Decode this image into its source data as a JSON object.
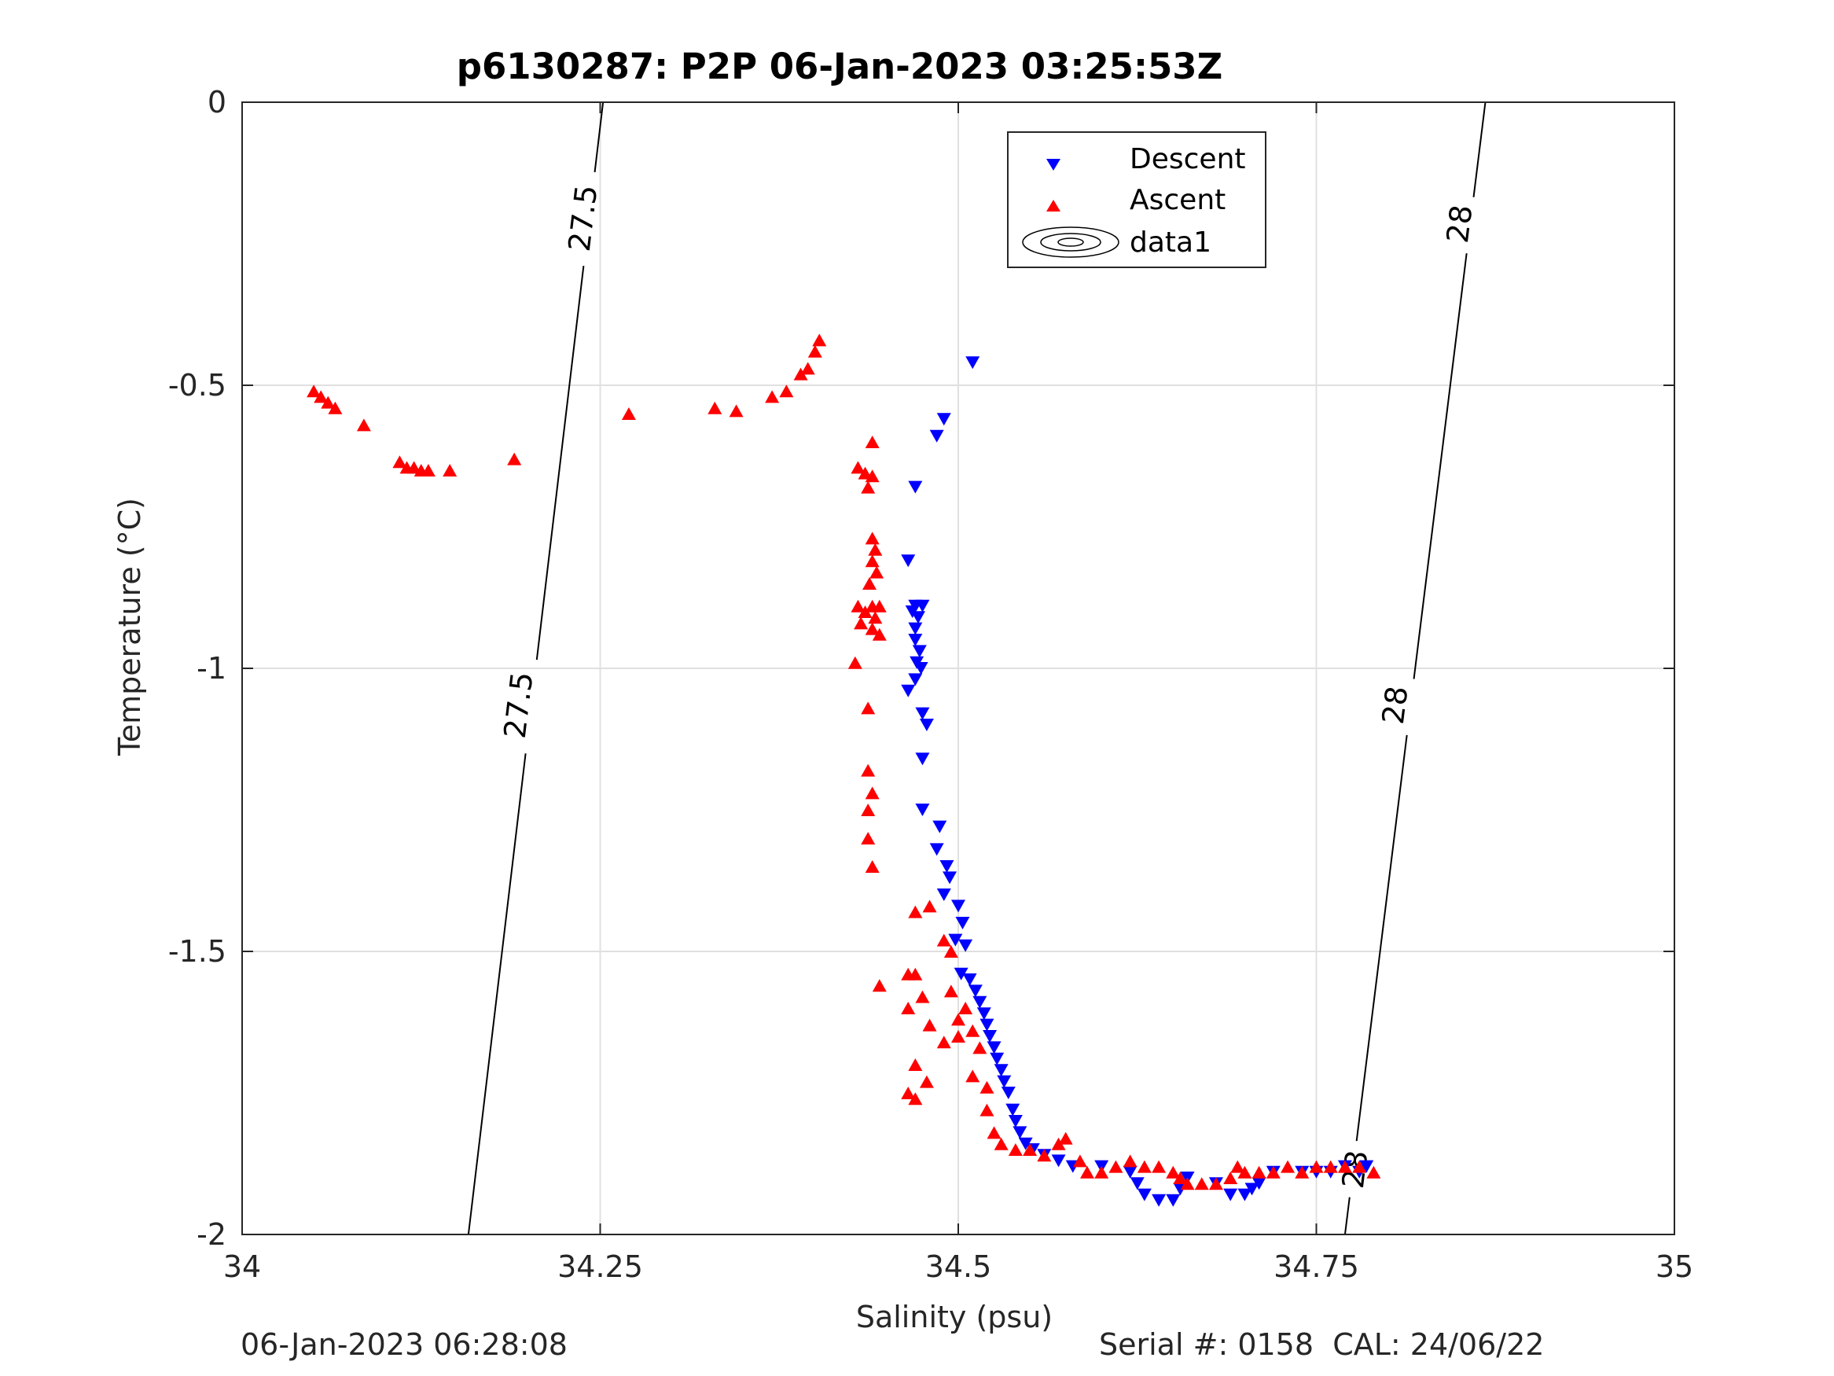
{
  "chart_data": {
    "type": "scatter",
    "title": "p6130287: P2P 06-Jan-2023 03:25:53Z",
    "xlabel": "Salinity (psu)",
    "ylabel": "Temperature (°C)",
    "xlim": [
      34,
      35
    ],
    "ylim": [
      -2,
      0
    ],
    "xticks": [
      34,
      34.25,
      34.5,
      34.75,
      35
    ],
    "xtick_labels": [
      "34",
      "34.25",
      "34.5",
      "34.75",
      "35"
    ],
    "yticks": [
      0,
      -0.5,
      -1,
      -1.5,
      -2
    ],
    "ytick_labels": [
      "0",
      "-0.5",
      "-1",
      "-1.5",
      "-2"
    ],
    "grid": true,
    "legend_position": "top-center",
    "legend": [
      "Descent",
      "Ascent",
      "data1"
    ],
    "colors": {
      "descent": "#0000ff",
      "ascent": "#ff0000",
      "contour": "#000000",
      "grid": "#e0e0e0",
      "axis": "#262626"
    },
    "contours": [
      {
        "level": "27.5",
        "points": [
          [
            34.158,
            -2.0
          ],
          [
            34.252,
            0.0
          ]
        ],
        "labels": [
          {
            "text": "27.5",
            "s": 34.238,
            "t": -0.205
          },
          {
            "text": "27.5",
            "s": 34.193,
            "t": -1.065
          }
        ]
      },
      {
        "level": "28",
        "points": [
          [
            34.77,
            -2.0
          ],
          [
            34.868,
            0.0
          ]
        ],
        "labels": [
          {
            "text": "28",
            "s": 34.85,
            "t": -0.215
          },
          {
            "text": "28",
            "s": 34.805,
            "t": -1.065
          },
          {
            "text": "28",
            "s": 34.777,
            "t": -1.885
          }
        ]
      }
    ],
    "series": [
      {
        "name": "Descent",
        "marker": "triangle-down",
        "points": [
          [
            34.51,
            -0.46
          ],
          [
            34.49,
            -0.56
          ],
          [
            34.485,
            -0.59
          ],
          [
            34.47,
            -0.68
          ],
          [
            34.465,
            -0.81
          ],
          [
            34.47,
            -0.89
          ],
          [
            34.475,
            -0.89
          ],
          [
            34.468,
            -0.9
          ],
          [
            34.472,
            -0.91
          ],
          [
            34.47,
            -0.93
          ],
          [
            34.47,
            -0.95
          ],
          [
            34.473,
            -0.97
          ],
          [
            34.471,
            -0.99
          ],
          [
            34.474,
            -1.0
          ],
          [
            34.47,
            -1.02
          ],
          [
            34.465,
            -1.04
          ],
          [
            34.475,
            -1.08
          ],
          [
            34.478,
            -1.1
          ],
          [
            34.475,
            -1.16
          ],
          [
            34.475,
            -1.25
          ],
          [
            34.487,
            -1.28
          ],
          [
            34.485,
            -1.32
          ],
          [
            34.492,
            -1.35
          ],
          [
            34.494,
            -1.37
          ],
          [
            34.49,
            -1.4
          ],
          [
            34.5,
            -1.42
          ],
          [
            34.503,
            -1.45
          ],
          [
            34.498,
            -1.48
          ],
          [
            34.505,
            -1.49
          ],
          [
            34.502,
            -1.54
          ],
          [
            34.508,
            -1.55
          ],
          [
            34.512,
            -1.57
          ],
          [
            34.515,
            -1.59
          ],
          [
            34.518,
            -1.61
          ],
          [
            34.52,
            -1.63
          ],
          [
            34.522,
            -1.65
          ],
          [
            34.525,
            -1.67
          ],
          [
            34.527,
            -1.69
          ],
          [
            34.53,
            -1.71
          ],
          [
            34.532,
            -1.73
          ],
          [
            34.535,
            -1.75
          ],
          [
            34.538,
            -1.78
          ],
          [
            34.54,
            -1.8
          ],
          [
            34.543,
            -1.82
          ],
          [
            34.547,
            -1.84
          ],
          [
            34.552,
            -1.85
          ],
          [
            34.56,
            -1.86
          ],
          [
            34.57,
            -1.87
          ],
          [
            34.58,
            -1.88
          ],
          [
            34.6,
            -1.88
          ],
          [
            34.62,
            -1.89
          ],
          [
            34.625,
            -1.91
          ],
          [
            34.63,
            -1.93
          ],
          [
            34.64,
            -1.94
          ],
          [
            34.65,
            -1.94
          ],
          [
            34.655,
            -1.92
          ],
          [
            34.66,
            -1.9
          ],
          [
            34.68,
            -1.91
          ],
          [
            34.69,
            -1.93
          ],
          [
            34.7,
            -1.93
          ],
          [
            34.705,
            -1.92
          ],
          [
            34.71,
            -1.91
          ],
          [
            34.72,
            -1.89
          ],
          [
            34.74,
            -1.89
          ],
          [
            34.75,
            -1.89
          ],
          [
            34.76,
            -1.89
          ],
          [
            34.77,
            -1.88
          ],
          [
            34.78,
            -1.89
          ],
          [
            34.785,
            -1.88
          ]
        ]
      },
      {
        "name": "Ascent",
        "marker": "triangle-up",
        "points": [
          [
            34.05,
            -0.51
          ],
          [
            34.055,
            -0.52
          ],
          [
            34.06,
            -0.53
          ],
          [
            34.065,
            -0.54
          ],
          [
            34.085,
            -0.57
          ],
          [
            34.11,
            -0.635
          ],
          [
            34.115,
            -0.645
          ],
          [
            34.12,
            -0.645
          ],
          [
            34.125,
            -0.65
          ],
          [
            34.13,
            -0.65
          ],
          [
            34.145,
            -0.65
          ],
          [
            34.19,
            -0.63
          ],
          [
            34.27,
            -0.55
          ],
          [
            34.33,
            -0.54
          ],
          [
            34.345,
            -0.545
          ],
          [
            34.37,
            -0.52
          ],
          [
            34.38,
            -0.51
          ],
          [
            34.39,
            -0.48
          ],
          [
            34.395,
            -0.47
          ],
          [
            34.4,
            -0.44
          ],
          [
            34.403,
            -0.42
          ],
          [
            34.44,
            -0.6
          ],
          [
            34.43,
            -0.645
          ],
          [
            34.435,
            -0.655
          ],
          [
            34.44,
            -0.66
          ],
          [
            34.437,
            -0.68
          ],
          [
            34.44,
            -0.77
          ],
          [
            34.442,
            -0.79
          ],
          [
            34.44,
            -0.81
          ],
          [
            34.443,
            -0.83
          ],
          [
            34.438,
            -0.85
          ],
          [
            34.43,
            -0.89
          ],
          [
            34.44,
            -0.89
          ],
          [
            34.445,
            -0.89
          ],
          [
            34.435,
            -0.9
          ],
          [
            34.442,
            -0.91
          ],
          [
            34.432,
            -0.92
          ],
          [
            34.44,
            -0.93
          ],
          [
            34.445,
            -0.94
          ],
          [
            34.428,
            -0.99
          ],
          [
            34.437,
            -1.07
          ],
          [
            34.437,
            -1.18
          ],
          [
            34.44,
            -1.22
          ],
          [
            34.437,
            -1.25
          ],
          [
            34.437,
            -1.3
          ],
          [
            34.44,
            -1.35
          ],
          [
            34.47,
            -1.43
          ],
          [
            34.48,
            -1.42
          ],
          [
            34.49,
            -1.48
          ],
          [
            34.495,
            -1.5
          ],
          [
            34.465,
            -1.54
          ],
          [
            34.47,
            -1.54
          ],
          [
            34.445,
            -1.56
          ],
          [
            34.475,
            -1.58
          ],
          [
            34.465,
            -1.6
          ],
          [
            34.495,
            -1.57
          ],
          [
            34.5,
            -1.62
          ],
          [
            34.505,
            -1.6
          ],
          [
            34.51,
            -1.64
          ],
          [
            34.515,
            -1.67
          ],
          [
            34.5,
            -1.65
          ],
          [
            34.48,
            -1.63
          ],
          [
            34.49,
            -1.66
          ],
          [
            34.47,
            -1.7
          ],
          [
            34.478,
            -1.73
          ],
          [
            34.465,
            -1.75
          ],
          [
            34.47,
            -1.76
          ],
          [
            34.51,
            -1.72
          ],
          [
            34.52,
            -1.74
          ],
          [
            34.52,
            -1.78
          ],
          [
            34.525,
            -1.82
          ],
          [
            34.53,
            -1.84
          ],
          [
            34.54,
            -1.85
          ],
          [
            34.55,
            -1.85
          ],
          [
            34.56,
            -1.86
          ],
          [
            34.57,
            -1.84
          ],
          [
            34.575,
            -1.83
          ],
          [
            34.585,
            -1.87
          ],
          [
            34.59,
            -1.89
          ],
          [
            34.6,
            -1.89
          ],
          [
            34.61,
            -1.88
          ],
          [
            34.62,
            -1.87
          ],
          [
            34.63,
            -1.88
          ],
          [
            34.64,
            -1.88
          ],
          [
            34.65,
            -1.89
          ],
          [
            34.655,
            -1.9
          ],
          [
            34.66,
            -1.91
          ],
          [
            34.67,
            -1.91
          ],
          [
            34.68,
            -1.91
          ],
          [
            34.69,
            -1.9
          ],
          [
            34.695,
            -1.88
          ],
          [
            34.7,
            -1.89
          ],
          [
            34.71,
            -1.89
          ],
          [
            34.72,
            -1.89
          ],
          [
            34.73,
            -1.88
          ],
          [
            34.74,
            -1.89
          ],
          [
            34.75,
            -1.88
          ],
          [
            34.76,
            -1.88
          ],
          [
            34.77,
            -1.88
          ],
          [
            34.78,
            -1.88
          ],
          [
            34.79,
            -1.89
          ]
        ]
      }
    ]
  },
  "footer": {
    "timestamp": "06-Jan-2023 06:28:08",
    "serial_cal": "Serial #: 0158  CAL: 24/06/22"
  }
}
